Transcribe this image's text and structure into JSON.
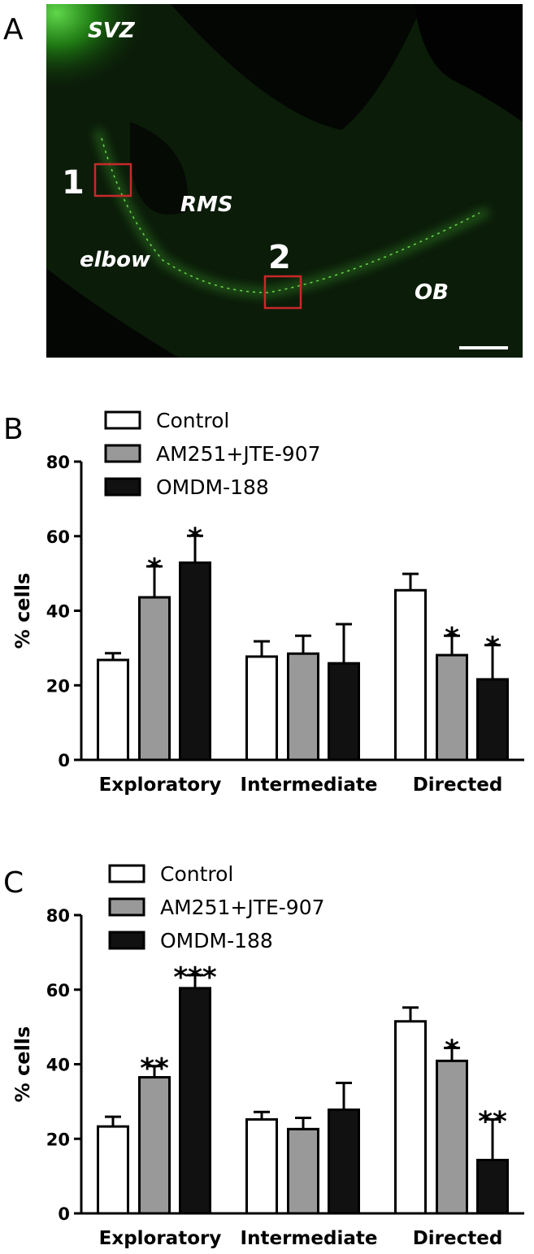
{
  "panel_a": {
    "label": "A",
    "texts": [
      "SVZ",
      "1",
      "RMS",
      "elbow",
      "2",
      "OB"
    ]
  },
  "chart_data": [
    {
      "type": "bar",
      "panel": "B",
      "ylabel": "% cells",
      "categories": [
        "Exploratory",
        "Intermediate",
        "Directed"
      ],
      "ylim": [
        0,
        80
      ],
      "yticks": [
        0,
        20,
        40,
        60,
        80
      ],
      "legend": "top-left",
      "series": [
        {
          "name": "Control",
          "color": "#ffffff",
          "values": [
            26.8,
            27.7,
            45.5
          ],
          "errors": [
            1.8,
            4.1,
            4.4
          ]
        },
        {
          "name": "AM251+JTE-907",
          "color": "#999999",
          "values": [
            43.6,
            28.5,
            28.1
          ],
          "errors": [
            8.3,
            4.8,
            5.2
          ],
          "annotations": [
            "*",
            null,
            "*"
          ]
        },
        {
          "name": "OMDM-188",
          "color": "#111111",
          "values": [
            52.9,
            25.9,
            21.6
          ],
          "errors": [
            7.2,
            10.5,
            9.2
          ],
          "annotations": [
            "*",
            null,
            "*"
          ]
        }
      ]
    },
    {
      "type": "bar",
      "panel": "C",
      "ylabel": "% cells",
      "categories": [
        "Exploratory",
        "Intermediate",
        "Directed"
      ],
      "ylim": [
        0,
        80
      ],
      "yticks": [
        0,
        20,
        40,
        60,
        80
      ],
      "legend": "top-left",
      "series": [
        {
          "name": "Control",
          "color": "#ffffff",
          "values": [
            23.3,
            25.2,
            51.5
          ],
          "errors": [
            2.6,
            2.0,
            3.7
          ]
        },
        {
          "name": "AM251+JTE-907",
          "color": "#999999",
          "values": [
            36.5,
            22.6,
            40.9
          ],
          "errors": [
            3.0,
            3.0,
            3.5
          ],
          "annotations": [
            "**",
            null,
            "*"
          ]
        },
        {
          "name": "OMDM-188",
          "color": "#111111",
          "values": [
            60.4,
            27.8,
            14.3
          ],
          "errors": [
            3.5,
            7.2,
            10.9
          ],
          "annotations": [
            "***",
            null,
            "**"
          ]
        }
      ]
    }
  ]
}
